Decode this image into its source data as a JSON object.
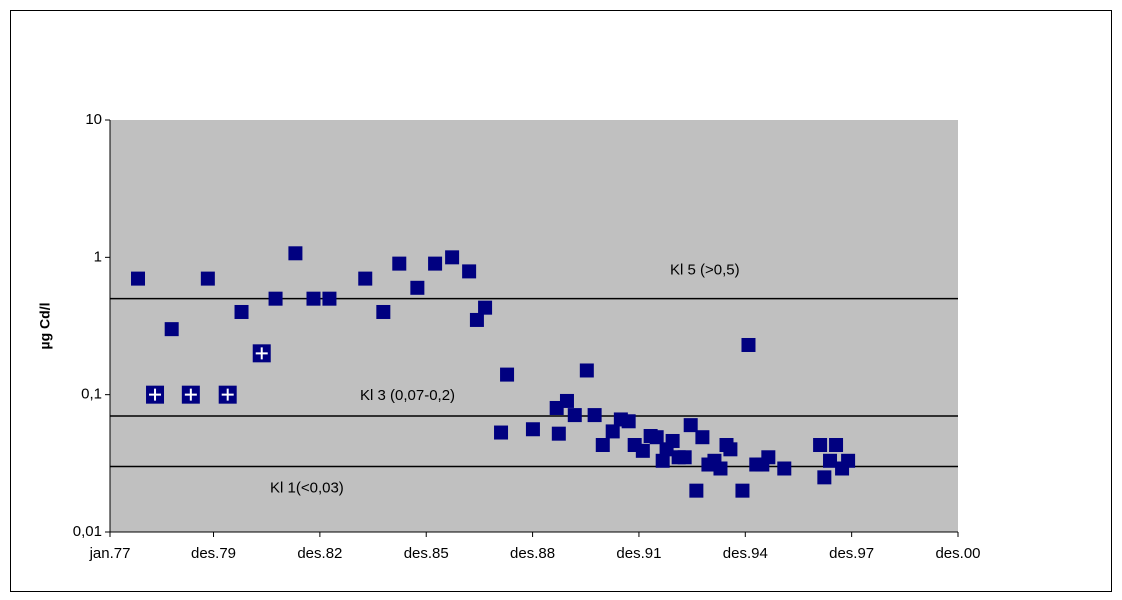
{
  "chart_data": {
    "type": "scatter",
    "ylabel": "µg Cd/l",
    "log_y": true,
    "ylim": [
      0.01,
      10
    ],
    "yticks": [
      {
        "value": 0.01,
        "label": "0,01"
      },
      {
        "value": 0.1,
        "label": "0,1"
      },
      1,
      10
    ],
    "xlim": [
      1977.0,
      2000.92
    ],
    "xticks": [
      {
        "value": 1977.0,
        "label": "jan.77"
      },
      {
        "value": 1979.92,
        "label": "des.79"
      },
      {
        "value": 1982.92,
        "label": "des.82"
      },
      {
        "value": 1985.92,
        "label": "des.85"
      },
      {
        "value": 1988.92,
        "label": "des.88"
      },
      {
        "value": 1991.92,
        "label": "des.91"
      },
      {
        "value": 1994.92,
        "label": "des.94"
      },
      {
        "value": 1997.92,
        "label": "des.97"
      },
      {
        "value": 2000.92,
        "label": "des.00"
      }
    ],
    "plot_background": "#c0c0c0",
    "series": [
      {
        "color": "#000080",
        "marker": "square",
        "x": [
          1977.79,
          1978.74,
          1979.76,
          1980.71,
          1981.67,
          1982.23,
          1982.74,
          1983.19,
          1984.2,
          1984.71,
          1985.16,
          1985.67,
          1986.17,
          1986.65,
          1987.13,
          1987.35,
          1987.58,
          1988.2,
          1988.03,
          1988.93,
          1989.6,
          1989.66,
          1989.89,
          1990.11,
          1990.45,
          1990.67,
          1990.9,
          1991.18,
          1991.41,
          1991.63,
          1991.8,
          1992.03,
          1992.25,
          1992.42,
          1992.59,
          1992.7,
          1992.87,
          1993.04,
          1993.21,
          1993.38,
          1993.54,
          1993.71,
          1993.88,
          1994.05,
          1994.22,
          1994.39,
          1994.5,
          1994.84,
          1995.01,
          1995.23,
          1995.4,
          1995.57,
          1996.02,
          1997.03,
          1997.15,
          1997.31,
          1997.48,
          1997.65,
          1997.82
        ],
        "values": [
          0.7,
          0.3,
          0.7,
          0.4,
          0.5,
          1.07,
          0.5,
          0.5,
          0.7,
          0.4,
          0.9,
          0.6,
          0.9,
          1.0,
          0.79,
          0.35,
          0.43,
          0.14,
          0.053,
          0.056,
          0.08,
          0.052,
          0.09,
          0.071,
          0.15,
          0.071,
          0.043,
          0.054,
          0.066,
          0.064,
          0.043,
          0.039,
          0.05,
          0.049,
          0.033,
          0.04,
          0.046,
          0.035,
          0.035,
          0.06,
          0.02,
          0.049,
          0.031,
          0.033,
          0.029,
          0.043,
          0.04,
          0.02,
          0.23,
          0.031,
          0.031,
          0.035,
          0.029,
          0.043,
          0.025,
          0.033,
          0.043,
          0.029,
          0.033
        ]
      },
      {
        "color": "#000080",
        "marker": "square-plus",
        "x": [
          1978.27,
          1979.28,
          1980.32,
          1981.28
        ],
        "values": [
          0.1,
          0.1,
          0.1,
          0.2
        ]
      }
    ],
    "annotations": [
      {
        "text": "Kl 5 (>0,5)",
        "value": 0.5
      },
      {
        "text": "Kl 3 (0,07-0,2)",
        "value": 0.07
      },
      {
        "text": "Kl 1(<0,03)",
        "value": 0.03
      }
    ]
  }
}
